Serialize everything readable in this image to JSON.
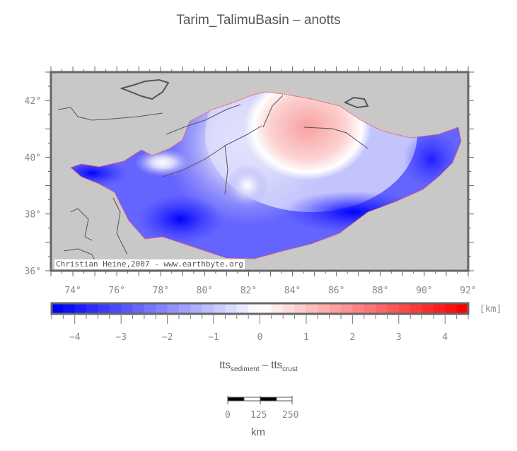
{
  "title": "Tarim_TalimuBasin – anotts",
  "map": {
    "lon_range": [
      73,
      92
    ],
    "lat_range": [
      36,
      43
    ],
    "lon_ticks": [
      74,
      76,
      78,
      80,
      82,
      84,
      86,
      88,
      90,
      92
    ],
    "lat_ticks": [
      36,
      38,
      40,
      42
    ],
    "lon_labels": [
      "74°",
      "76°",
      "78°",
      "80°",
      "82°",
      "84°",
      "86°",
      "88°",
      "90°",
      "92°"
    ],
    "lat_labels": [
      "36°",
      "38°",
      "40°",
      "42°"
    ],
    "background_color": "#c8c8c8",
    "credit": "Christian Heine,2007 - www.earthbyte.org"
  },
  "colorbar": {
    "min": -4.5,
    "max": 4.5,
    "step": 0.25,
    "unit": "[km]",
    "tick_values": [
      -4,
      -3,
      -2,
      -1,
      0,
      1,
      2,
      3,
      4
    ],
    "tick_labels": [
      "−4",
      "−3",
      "−2",
      "−1",
      "0",
      "1",
      "2",
      "3",
      "4"
    ],
    "low_color": "#0000ff",
    "mid_color": "#ffffff",
    "high_color": "#ff0000"
  },
  "parameter": {
    "a": "tts",
    "a_sub": "sediment",
    "op": " – ",
    "b": "tts",
    "b_sub": "crust"
  },
  "scalebar": {
    "labels": [
      "0",
      "125",
      "250"
    ],
    "unit": "km"
  }
}
